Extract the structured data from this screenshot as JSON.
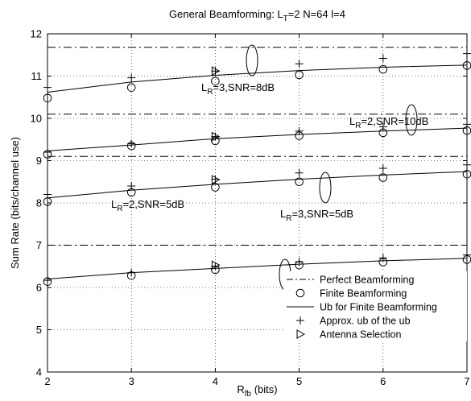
{
  "chart_data": {
    "type": "line",
    "title": {
      "main": "General Beamforming: L",
      "sub": "T",
      "rest": "=2 N=64 l=4"
    },
    "xlabel": {
      "main": "R",
      "sub": "fb",
      "rest": " (bits)"
    },
    "ylabel": "Sum Rate (bits/channel use)",
    "xlim": [
      2,
      7
    ],
    "ylim": [
      4,
      12
    ],
    "xticks": [
      "2",
      "3",
      "4",
      "5",
      "6",
      "7"
    ],
    "yticks": [
      "4",
      "5",
      "6",
      "7",
      "8",
      "9",
      "10",
      "11",
      "12"
    ],
    "grid": "dotted",
    "legend_position": "bottom-right",
    "legend": [
      {
        "label": "Perfect Beamforming",
        "marker": "dashdot"
      },
      {
        "label": "Finite Beamforming",
        "marker": "circle"
      },
      {
        "label": "Ub for Finite Beamforming",
        "marker": "solid"
      },
      {
        "label": "Approx. ub of the ub",
        "marker": "plus"
      },
      {
        "label": "Antenna Selection",
        "marker": "triangle"
      }
    ],
    "groups": [
      {
        "annotation": {
          "main": "L",
          "sub": "R",
          "rest": "=3,SNR=8dB"
        },
        "perfect": 11.68,
        "x": [
          2,
          3,
          4,
          5,
          6,
          7
        ],
        "finite": [
          10.48,
          10.73,
          10.88,
          11.03,
          11.16,
          11.25
        ],
        "ub_curve": [
          10.62,
          10.86,
          11.02,
          11.13,
          11.21,
          11.26
        ],
        "approx_ub": [
          10.73,
          10.96,
          11.12,
          11.29,
          11.42,
          11.53
        ],
        "antenna_selection": {
          "x": 4,
          "y": 11.12
        }
      },
      {
        "annotation": {
          "main": "L",
          "sub": "R",
          "rest": "=2,SNR=10dB"
        },
        "perfect": 10.1,
        "x": [
          2,
          3,
          4,
          5,
          6,
          7
        ],
        "finite": [
          9.15,
          9.35,
          9.47,
          9.59,
          9.66,
          9.71
        ],
        "ub_curve": [
          9.23,
          9.37,
          9.52,
          9.62,
          9.7,
          9.77
        ],
        "approx_ub": [
          9.2,
          9.4,
          9.57,
          9.7,
          9.8,
          9.86
        ],
        "antenna_selection": {
          "x": 4,
          "y": 9.57
        }
      },
      {
        "annotation": {
          "main": "L",
          "sub": "R",
          "rest": "=3,SNR=5dB"
        },
        "perfect": 9.1,
        "x": [
          2,
          3,
          4,
          5,
          6,
          7
        ],
        "finite": [
          8.03,
          8.25,
          8.37,
          8.5,
          8.6,
          8.68
        ],
        "ub_curve": [
          8.12,
          8.3,
          8.44,
          8.56,
          8.66,
          8.74
        ],
        "approx_ub": [
          8.2,
          8.4,
          8.56,
          8.71,
          8.82,
          8.9
        ],
        "antenna_selection": {
          "x": 4,
          "y": 8.55
        }
      },
      {
        "annotation": {
          "main": "L",
          "sub": "R",
          "rest": "=2,SNR=5dB"
        },
        "perfect": 7.0,
        "x": [
          2,
          3,
          4,
          5,
          6,
          7
        ],
        "finite": [
          6.14,
          6.28,
          6.42,
          6.53,
          6.6,
          6.66
        ],
        "ub_curve": [
          6.2,
          6.35,
          6.45,
          6.55,
          6.63,
          6.69
        ],
        "approx_ub": [
          6.17,
          6.35,
          6.5,
          6.61,
          6.7,
          6.77
        ],
        "antenna_selection": {
          "x": 4,
          "y": 6.53
        }
      }
    ]
  }
}
